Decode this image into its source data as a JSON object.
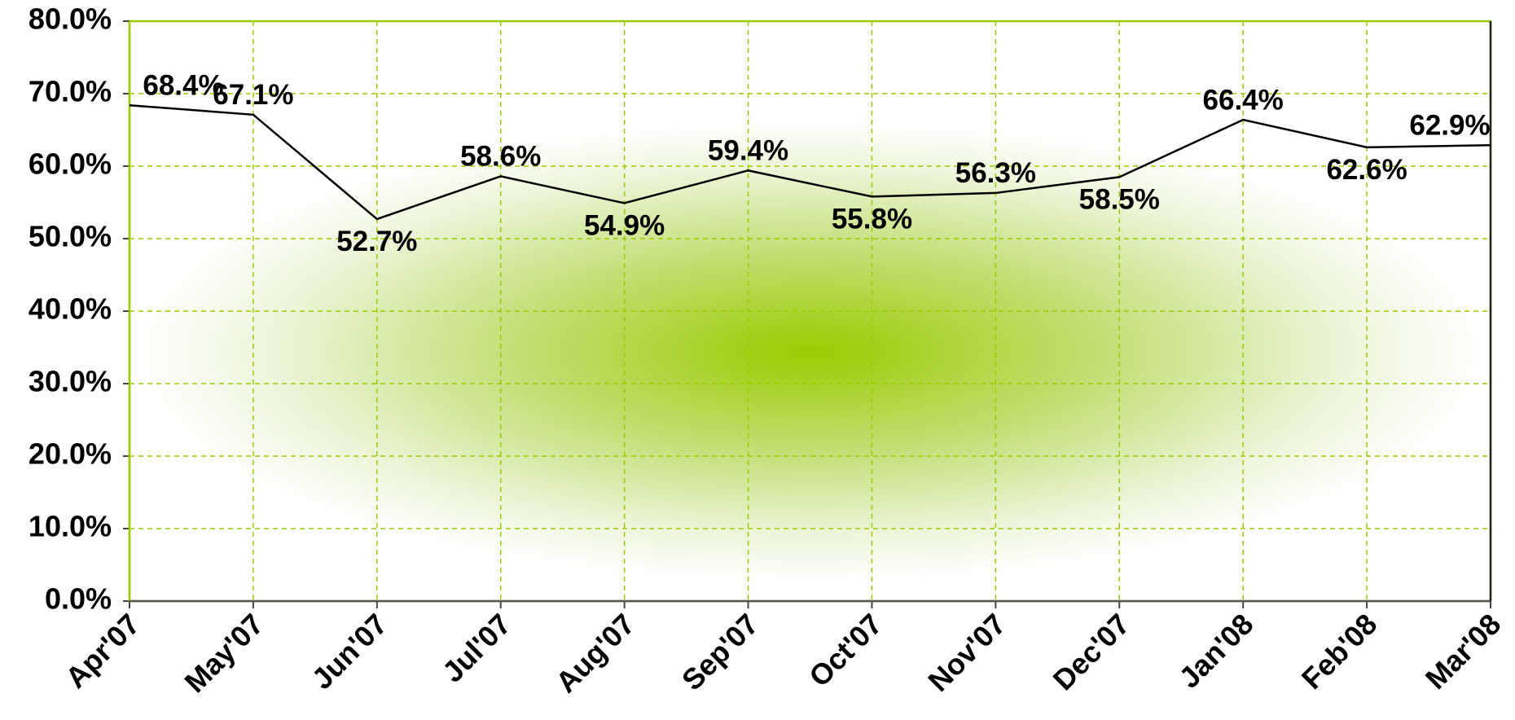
{
  "chart_data": {
    "type": "line",
    "categories": [
      "Apr'07",
      "May'07",
      "Jun'07",
      "Jul'07",
      "Aug'07",
      "Sep'07",
      "Oct'07",
      "Nov'07",
      "Dec'07",
      "Jan'08",
      "Feb'08",
      "Mar'08"
    ],
    "values": [
      68.4,
      67.1,
      52.7,
      58.6,
      54.9,
      59.4,
      55.8,
      56.3,
      58.5,
      66.4,
      62.6,
      62.9
    ],
    "value_labels": [
      "68.4%",
      "67.1%",
      "52.7%",
      "58.6%",
      "54.9%",
      "59.4%",
      "55.8%",
      "56.3%",
      "58.5%",
      "66.4%",
      "62.6%",
      "62.9%"
    ],
    "color": "#000000",
    "ylim": [
      0,
      80
    ],
    "yticks": [
      {
        "value": 0,
        "label": "0.0%"
      },
      {
        "value": 10,
        "label": "10.0%"
      },
      {
        "value": 20,
        "label": "20.0%"
      },
      {
        "value": 30,
        "label": "30.0%"
      },
      {
        "value": 40,
        "label": "40.0%"
      },
      {
        "value": 50,
        "label": "50.0%"
      },
      {
        "value": 60,
        "label": "60.0%"
      },
      {
        "value": 70,
        "label": "70.0%"
      },
      {
        "value": 80,
        "label": "80.0%"
      }
    ],
    "grid": true
  }
}
